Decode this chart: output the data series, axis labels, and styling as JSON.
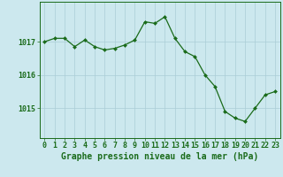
{
  "x": [
    0,
    1,
    2,
    3,
    4,
    5,
    6,
    7,
    8,
    9,
    10,
    11,
    12,
    13,
    14,
    15,
    16,
    17,
    18,
    19,
    20,
    21,
    22,
    23
  ],
  "y": [
    1017.0,
    1017.1,
    1017.1,
    1016.85,
    1017.05,
    1016.85,
    1016.75,
    1016.8,
    1016.9,
    1017.05,
    1017.6,
    1017.55,
    1017.75,
    1017.1,
    1016.7,
    1016.55,
    1016.0,
    1015.65,
    1014.9,
    1014.7,
    1014.6,
    1015.0,
    1015.4,
    1015.5
  ],
  "line_color": "#1a6b1a",
  "marker_color": "#1a6b1a",
  "bg_color": "#cce8ee",
  "grid_color": "#aacdd6",
  "axis_color": "#1a6b1a",
  "tick_color": "#1a6b1a",
  "label_color": "#1a6b1a",
  "xlabel": "Graphe pression niveau de la mer (hPa)",
  "yticks": [
    1015,
    1016,
    1017
  ],
  "ylim": [
    1014.1,
    1018.2
  ],
  "xlim": [
    -0.5,
    23.5
  ],
  "xlabel_fontsize": 7.0,
  "tick_fontsize": 6.0
}
